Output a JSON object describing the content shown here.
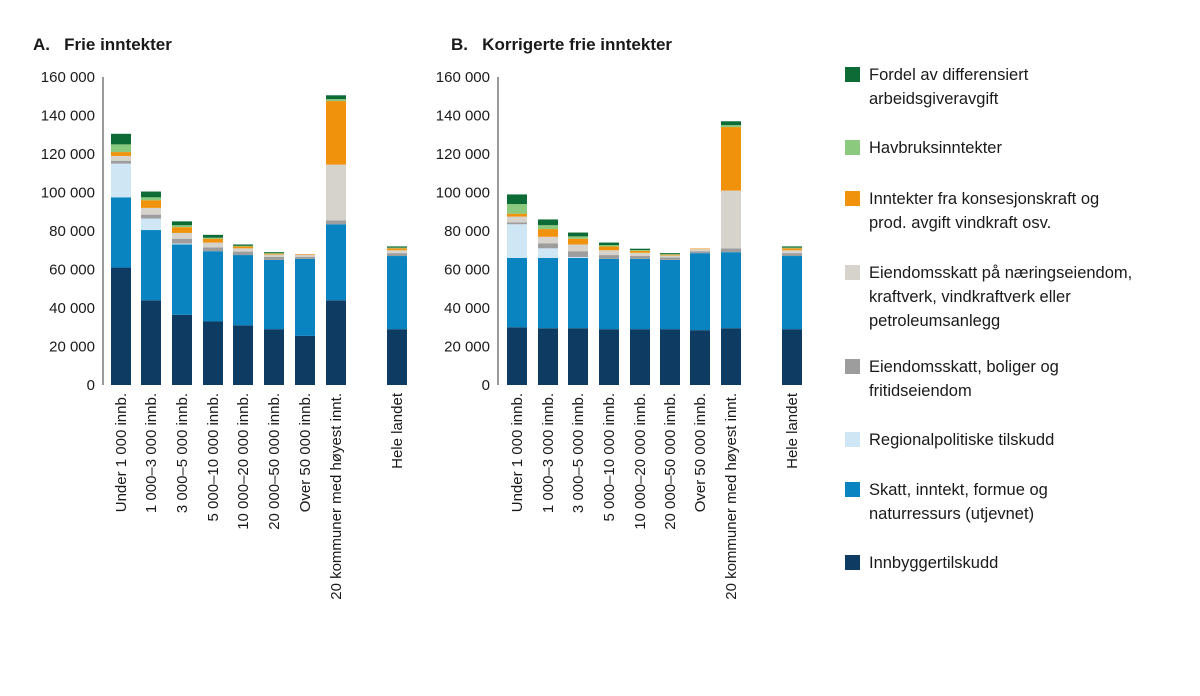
{
  "chart_data": [
    {
      "type": "bar",
      "stacked": true,
      "title": "A.   Frie inntekter",
      "xlabel": "",
      "ylabel": "",
      "ylim": [
        0,
        160000
      ],
      "yticks": [
        0,
        20000,
        40000,
        60000,
        80000,
        100000,
        120000,
        140000,
        160000
      ],
      "ytick_labels": [
        "0",
        "20 000",
        "40 000",
        "60 000",
        "80 000",
        "100 000",
        "120 000",
        "140 000",
        "160 000"
      ],
      "categories": [
        "Under 1 000 innb.",
        "1 000–3 000 innb.",
        "3 000–5 000 innb.",
        "5 000–10 000 innb.",
        "10 000–20 000 innb.",
        "20 000–50 000 innb.",
        "Over 50 000 innb.",
        "20 kommuner med høyest innt.",
        "Hele landet"
      ],
      "series": [
        {
          "name": "Innbyggertilskudd",
          "values": [
            61000,
            44000,
            36500,
            33000,
            31000,
            29000,
            25500,
            44000,
            29000
          ]
        },
        {
          "name": "Skatt, inntekt, formue og naturressurs (utjevnet)",
          "values": [
            36500,
            36500,
            36500,
            36500,
            36500,
            36000,
            40000,
            39500,
            38000
          ]
        },
        {
          "name": "Regionalpolitiske tilskudd",
          "values": [
            17500,
            6000,
            500,
            0,
            0,
            0,
            0,
            0,
            0
          ]
        },
        {
          "name": "Eiendomsskatt, boliger og fritidseiendom",
          "values": [
            1500,
            2000,
            2500,
            2000,
            1800,
            1500,
            1000,
            2000,
            1500
          ]
        },
        {
          "name": "Eiendomsskatt på næringseiendom, kraftverk, vindkraftverk eller petroleumsanlegg",
          "values": [
            2500,
            3500,
            3000,
            2500,
            1700,
            1300,
            1300,
            29000,
            1500
          ]
        },
        {
          "name": "Inntekter fra konsesjonskraft og prod. avgift vindkraft osv.",
          "values": [
            2000,
            4000,
            3000,
            2000,
            1000,
            500,
            200,
            33000,
            1000
          ]
        },
        {
          "name": "Havbruksinntekter",
          "values": [
            4000,
            1500,
            1000,
            500,
            300,
            200,
            0,
            1000,
            400
          ]
        },
        {
          "name": "Fordel av differensiert arbeidsgiveravgift",
          "values": [
            5500,
            3000,
            2000,
            1500,
            700,
            500,
            0,
            2000,
            600
          ]
        }
      ],
      "colors": [
        "#0e3b62",
        "#0a84c1",
        "#cfe6f5",
        "#9d9d9d",
        "#d6d3cc",
        "#f0920b",
        "#8ac97e",
        "#0d6b36"
      ]
    },
    {
      "type": "bar",
      "stacked": true,
      "title": "B.   Korrigerte frie inntekter",
      "xlabel": "",
      "ylabel": "",
      "ylim": [
        0,
        160000
      ],
      "yticks": [
        0,
        20000,
        40000,
        60000,
        80000,
        100000,
        120000,
        140000,
        160000
      ],
      "ytick_labels": [
        "0",
        "20 000",
        "40 000",
        "60 000",
        "80 000",
        "100 000",
        "120 000",
        "140 000",
        "160 000"
      ],
      "categories": [
        "Under 1 000 innb.",
        "1 000–3 000 innb.",
        "3 000–5 000 innb.",
        "5 000–10 000 innb.",
        "10 000–20 000 innb.",
        "20 000–50 000 innb.",
        "Over 50 000 innb.",
        "20 kommuner med høyest innt.",
        "Hele landet"
      ],
      "series": [
        {
          "name": "Innbyggertilskudd",
          "values": [
            30000,
            29500,
            29500,
            29000,
            29000,
            29000,
            28500,
            29500,
            29000
          ]
        },
        {
          "name": "Skatt, inntekt, formue og naturressurs (utjevnet)",
          "values": [
            36000,
            36500,
            36500,
            36500,
            36500,
            36000,
            40000,
            39500,
            38000
          ]
        },
        {
          "name": "Regionalpolitiske tilskudd",
          "values": [
            17500,
            5000,
            500,
            0,
            0,
            0,
            0,
            0,
            0
          ]
        },
        {
          "name": "Eiendomsskatt, boliger og fritidseiendom",
          "values": [
            1000,
            2500,
            3000,
            2000,
            1500,
            1300,
            1000,
            2000,
            1500
          ]
        },
        {
          "name": "Eiendomsskatt på næringseiendom, kraftverk, vindkraftverk eller petroleumsanlegg",
          "values": [
            3000,
            3500,
            3500,
            2500,
            1700,
            1000,
            1200,
            30000,
            1500
          ]
        },
        {
          "name": "Inntekter fra konsesjonskraft og prod. avgift vindkraft osv.",
          "values": [
            1500,
            4000,
            3000,
            2000,
            1000,
            500,
            200,
            33000,
            1000
          ]
        },
        {
          "name": "Havbruksinntekter",
          "values": [
            5000,
            2000,
            1200,
            700,
            400,
            200,
            0,
            1000,
            400
          ]
        },
        {
          "name": "Fordel av differensiert arbeidsgiveravgift",
          "values": [
            5000,
            3000,
            2000,
            1300,
            700,
            500,
            0,
            2000,
            600
          ]
        }
      ],
      "colors": [
        "#0e3b62",
        "#0a84c1",
        "#cfe6f5",
        "#9d9d9d",
        "#d6d3cc",
        "#f0920b",
        "#8ac97e",
        "#0d6b36"
      ]
    }
  ],
  "legend": {
    "position": "right",
    "items": [
      {
        "lines": [
          "Fordel av differensiert",
          "arbeidsgiveravgift"
        ],
        "color": "#0d6b36"
      },
      {
        "lines": [
          "Havbruksinntekter"
        ],
        "color": "#8ac97e"
      },
      {
        "lines": [
          "Inntekter fra konsesjonskraft og",
          "prod. avgift vindkraft osv."
        ],
        "color": "#f0920b"
      },
      {
        "lines": [
          "Eiendomsskatt på næringseiendom,",
          "kraftverk, vindkraftverk eller",
          "petroleumsanlegg"
        ],
        "color": "#d6d3cc"
      },
      {
        "lines": [
          "Eiendomsskatt, boliger og",
          "fritidseiendom"
        ],
        "color": "#9d9d9d"
      },
      {
        "lines": [
          "Regionalpolitiske tilskudd"
        ],
        "color": "#cfe6f5"
      },
      {
        "lines": [
          "Skatt, inntekt, formue og",
          "naturressurs (utjevnet)"
        ],
        "color": "#0a84c1"
      },
      {
        "lines": [
          "Innbyggertilskudd"
        ],
        "color": "#0e3b62"
      }
    ]
  }
}
